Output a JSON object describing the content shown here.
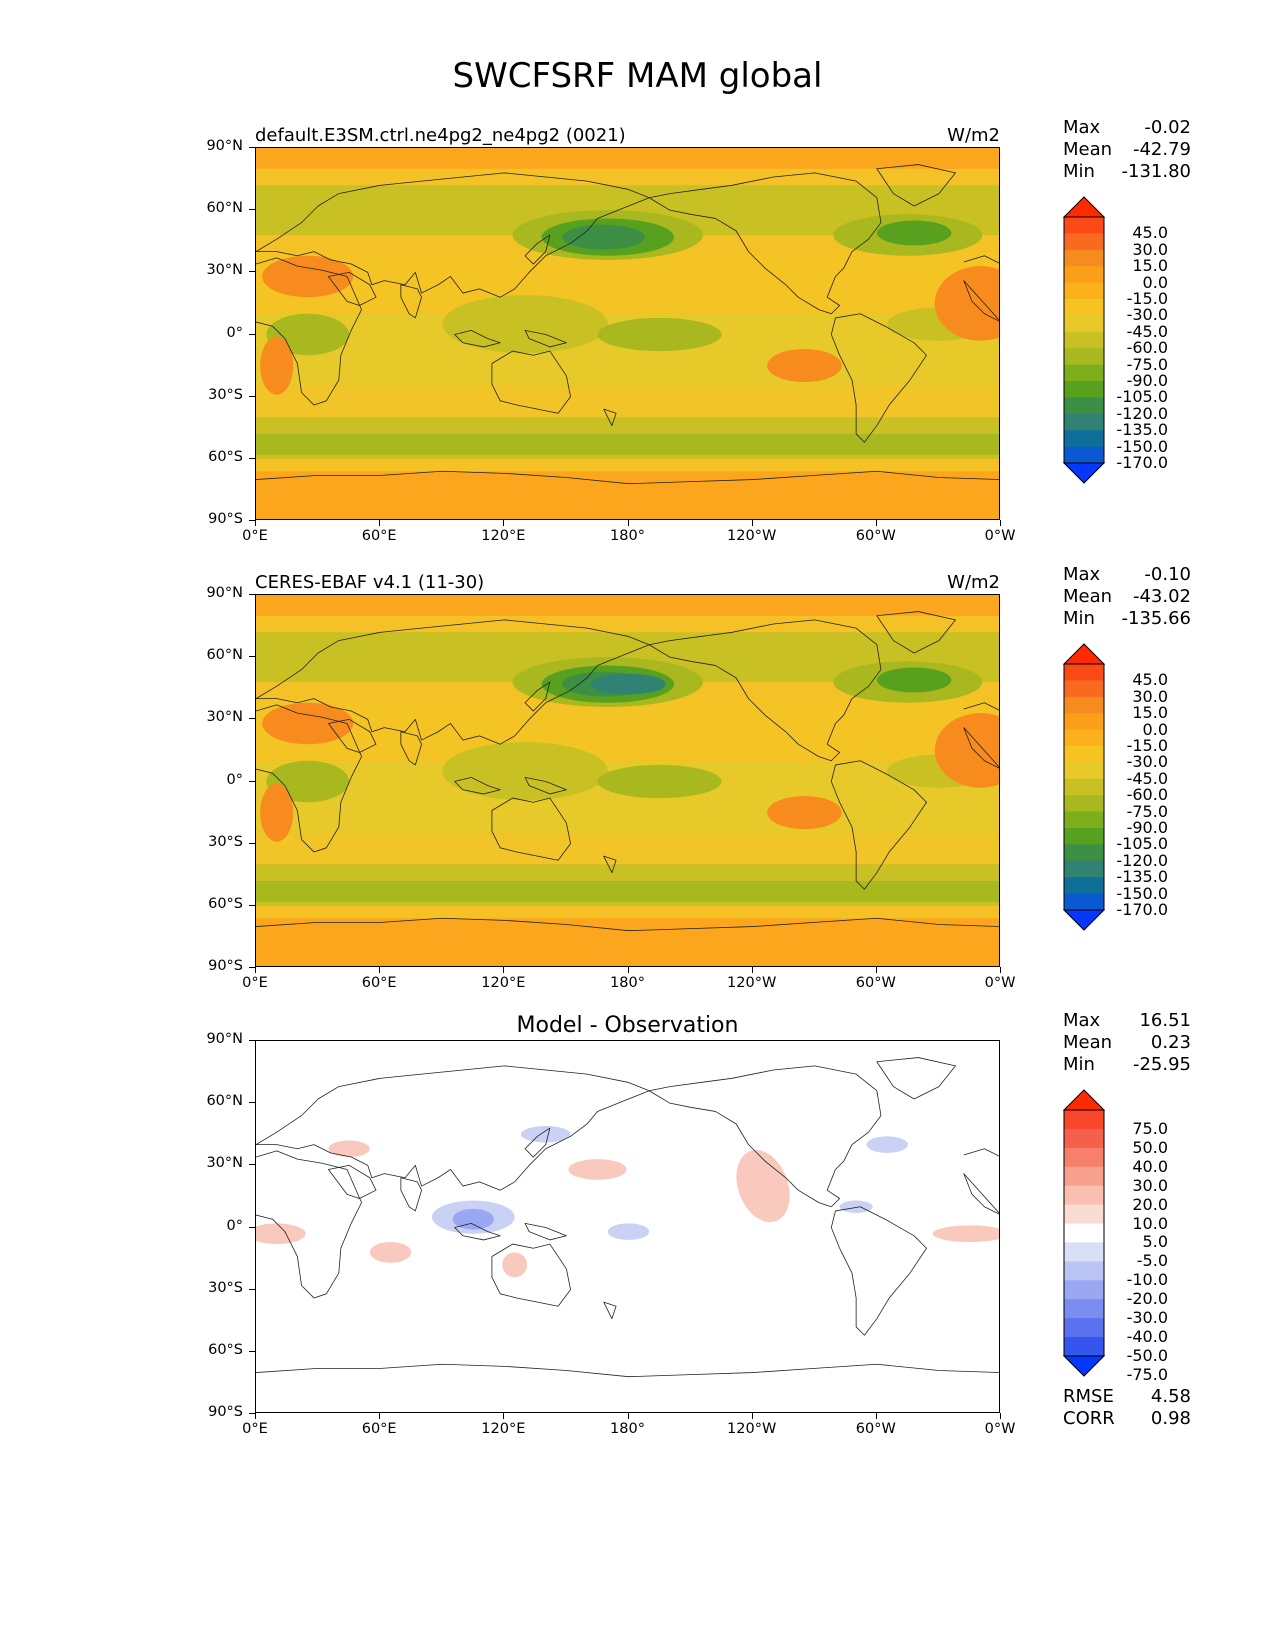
{
  "figure_title": "SWCFSRF MAM global",
  "lat_ticks": [
    "90°N",
    "60°N",
    "30°N",
    "0°",
    "30°S",
    "60°S",
    "90°S"
  ],
  "lon_ticks": [
    "0°E",
    "60°E",
    "120°E",
    "180°",
    "120°W",
    "60°W",
    "0°W"
  ],
  "panels": [
    {
      "id": "model",
      "title_left": "default.E3SM.ctrl.ne4pg2_ne4pg2 (0021)",
      "title_right": "W/m2",
      "title_center": "",
      "stats": {
        "max_label": "Max",
        "max": "-0.02",
        "mean_label": "Mean",
        "mean": "-42.79",
        "min_label": "Min",
        "min": "-131.80"
      },
      "colorbar_labels": [
        "45.0",
        "30.0",
        "15.0",
        "0.0",
        "-15.0",
        "-30.0",
        "-45.0",
        "-60.0",
        "-75.0",
        "-90.0",
        "-105.0",
        "-120.0",
        "-135.0",
        "-150.0",
        "-170.0"
      ],
      "colorbar_colors": [
        "#ff2a00",
        "#fb4a17",
        "#f86a1f",
        "#f88b1e",
        "#fb9f18",
        "#fbb11b",
        "#f7c321",
        "#e8c92a",
        "#c9c123",
        "#a8b81e",
        "#7fae1c",
        "#57a11f",
        "#3c8f45",
        "#2f8274",
        "#0e6f98",
        "#0a59d0",
        "#0537ff"
      ]
    },
    {
      "id": "obs",
      "title_left": "CERES-EBAF v4.1 (11-30)",
      "title_right": "W/m2",
      "title_center": "",
      "stats": {
        "max_label": "Max",
        "max": "-0.10",
        "mean_label": "Mean",
        "mean": "-43.02",
        "min_label": "Min",
        "min": "-135.66"
      },
      "colorbar_labels": [
        "45.0",
        "30.0",
        "15.0",
        "0.0",
        "-15.0",
        "-30.0",
        "-45.0",
        "-60.0",
        "-75.0",
        "-90.0",
        "-105.0",
        "-120.0",
        "-135.0",
        "-150.0",
        "-170.0"
      ],
      "colorbar_colors": [
        "#ff2a00",
        "#fb4a17",
        "#f86a1f",
        "#f88b1e",
        "#fb9f18",
        "#fbb11b",
        "#f7c321",
        "#e8c92a",
        "#c9c123",
        "#a8b81e",
        "#7fae1c",
        "#57a11f",
        "#3c8f45",
        "#2f8274",
        "#0e6f98",
        "#0a59d0",
        "#0537ff"
      ]
    },
    {
      "id": "diff",
      "title_left": "",
      "title_right": "",
      "title_center": "Model - Observation",
      "stats": {
        "max_label": "Max",
        "max": "16.51",
        "mean_label": "Mean",
        "mean": "0.23",
        "min_label": "Min",
        "min": "-25.95"
      },
      "colorbar_labels": [
        "75.0",
        "50.0",
        "40.0",
        "30.0",
        "20.0",
        "10.0",
        "5.0",
        "-5.0",
        "-10.0",
        "-20.0",
        "-30.0",
        "-40.0",
        "-50.0",
        "-75.0"
      ],
      "colorbar_colors": [
        "#ff2a00",
        "#f9462b",
        "#f5604a",
        "#f7806c",
        "#f7a08e",
        "#f9bfb1",
        "#fbdcd3",
        "#ffffff",
        "#dadff8",
        "#bac4f5",
        "#9aa8f3",
        "#7a8df1",
        "#5a72f0",
        "#3456ef",
        "#0537ff"
      ],
      "error_stats": {
        "rmse_label": "RMSE",
        "rmse": "4.58",
        "corr_label": "CORR",
        "corr": "0.98"
      }
    }
  ]
}
